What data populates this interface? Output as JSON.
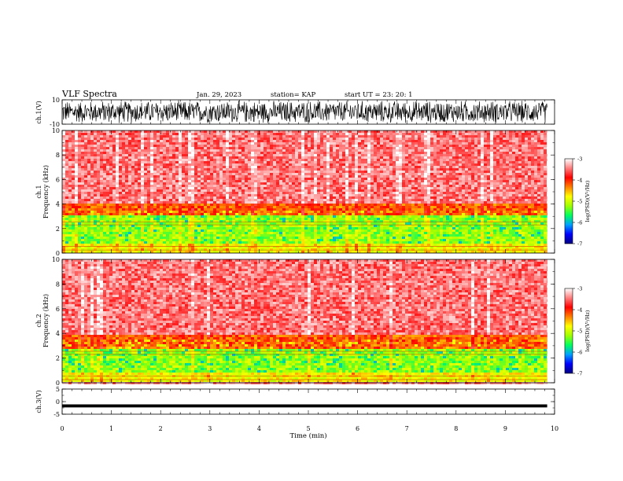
{
  "header": {
    "title": "VLF Spectra",
    "date": "Jan. 29, 2023",
    "station": "station= KAP",
    "start": "start  UT =   23: 20: 1"
  },
  "chart_data": [
    {
      "type": "line",
      "name": "ch1-waveform",
      "ylabel": "ch.1(V)",
      "ylim": [
        -10,
        10
      ],
      "xlim": [
        0,
        10
      ],
      "ytick_labels": [
        "10",
        "-10"
      ],
      "y_ticks": [
        10,
        -10
      ],
      "data_end_min": 9.85,
      "data_note": "dense noise-like waveform, amplitude near full scale"
    },
    {
      "type": "heatmap",
      "name": "ch1-spectrogram",
      "ylabel": "ch.1\nFrequency  (kHz)",
      "ylim": [
        0,
        10
      ],
      "xlim": [
        0,
        10
      ],
      "y_ticks": [
        0,
        2,
        4,
        6,
        8,
        10
      ],
      "ytick_labels": [
        "0",
        "2",
        "4",
        "6",
        "8",
        "10"
      ],
      "data_end_min": 9.85,
      "colorbar": {
        "label": "log(PSD)(V²/Hz)",
        "range": [
          -7,
          -3
        ],
        "ticks": [
          -3,
          -4,
          -5,
          -6,
          -7
        ],
        "tick_labels": [
          "-3",
          "-4",
          "-5",
          "-6",
          "-7"
        ],
        "colors": [
          "#000080",
          "#0000ff",
          "#00a0ff",
          "#00ff60",
          "#a0ff00",
          "#ffff00",
          "#ff8000",
          "#ff0000",
          "#ff8080",
          "#ffffff"
        ]
      },
      "bands": [
        {
          "f_lo": 0,
          "f_hi": 0.8,
          "level": 0.55
        },
        {
          "f_lo": 0.8,
          "f_hi": 3.0,
          "level": 0.45
        },
        {
          "f_lo": 3.0,
          "f_hi": 4.0,
          "level": 0.7
        },
        {
          "f_lo": 4.0,
          "f_hi": 10.0,
          "level": 0.88
        }
      ]
    },
    {
      "type": "heatmap",
      "name": "ch2-spectrogram",
      "ylabel": "ch.2\nFrequency  (kHz)",
      "ylim": [
        0,
        10
      ],
      "xlim": [
        0,
        10
      ],
      "y_ticks": [
        0,
        2,
        4,
        6,
        8,
        10
      ],
      "ytick_labels": [
        "0",
        "2",
        "4",
        "6",
        "8",
        "10"
      ],
      "data_end_min": 9.85,
      "colorbar": {
        "label": "log(PSD)(V²/Hz)",
        "range": [
          -7,
          -3
        ],
        "ticks": [
          -3,
          -4,
          -5,
          -6,
          -7
        ],
        "tick_labels": [
          "-3",
          "-4",
          "-5",
          "-6",
          "-7"
        ],
        "colors": [
          "#000080",
          "#0000ff",
          "#00a0ff",
          "#00ff60",
          "#a0ff00",
          "#ffff00",
          "#ff8000",
          "#ff0000",
          "#ff8080",
          "#ffffff"
        ]
      },
      "bands": [
        {
          "f_lo": 0,
          "f_hi": 0.8,
          "level": 0.55
        },
        {
          "f_lo": 0.8,
          "f_hi": 2.8,
          "level": 0.45
        },
        {
          "f_lo": 2.8,
          "f_hi": 3.8,
          "level": 0.7
        },
        {
          "f_lo": 3.8,
          "f_hi": 10.0,
          "level": 0.88
        }
      ]
    },
    {
      "type": "line",
      "name": "ch3-waveform",
      "ylabel": "ch.3(V)",
      "ylim": [
        -5,
        5
      ],
      "xlim": [
        0,
        10
      ],
      "y_ticks": [
        5,
        0,
        -5
      ],
      "ytick_labels": [
        "5",
        "0",
        "-5"
      ],
      "data_end_min": 9.85,
      "band_center_v": -1.7,
      "band_halfwidth_v": 0.6
    }
  ],
  "x_axis": {
    "label": "Time  (min)",
    "ticks": [
      0,
      1,
      2,
      3,
      4,
      5,
      6,
      7,
      8,
      9,
      10
    ],
    "tick_labels": [
      "0",
      "1",
      "2",
      "3",
      "4",
      "5",
      "6",
      "7",
      "8",
      "9",
      "10"
    ]
  }
}
